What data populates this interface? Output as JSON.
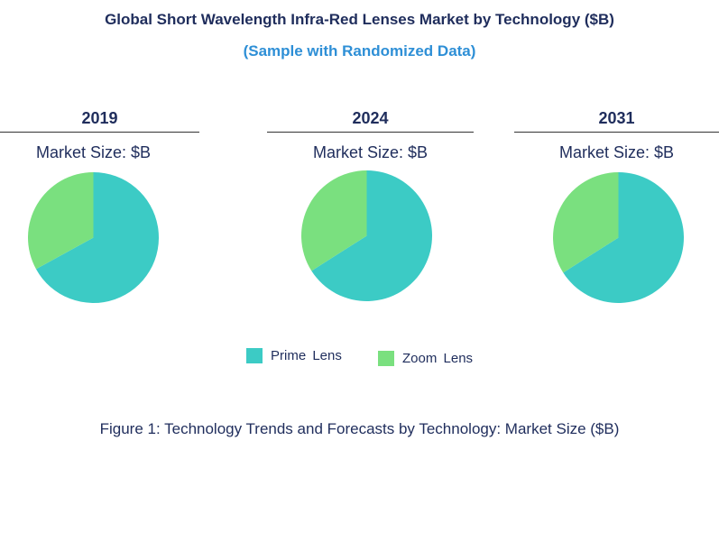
{
  "chart_data": {
    "type": "pie",
    "title": "Global Short Wavelength Infra-Red Lenses Market by Technology ($B)",
    "subtitle": "(Sample with Randomized Data)",
    "caption": "Figure 1: Technology Trends and Forecasts by Technology: Market Size ($B)",
    "categories": [
      "Prime  Lens",
      "Zoom  Lens"
    ],
    "colors": [
      "#3ccbc5",
      "#7ae07f"
    ],
    "legend_position": "bottom-center",
    "charts": [
      {
        "year": "2019",
        "label": "Market Size: $B",
        "values": [
          67,
          33
        ]
      },
      {
        "year": "2024",
        "label": "Market Size: $B",
        "values": [
          66,
          34
        ]
      },
      {
        "year": "2031",
        "label": "Market Size: $B",
        "values": [
          66,
          34
        ]
      }
    ]
  }
}
